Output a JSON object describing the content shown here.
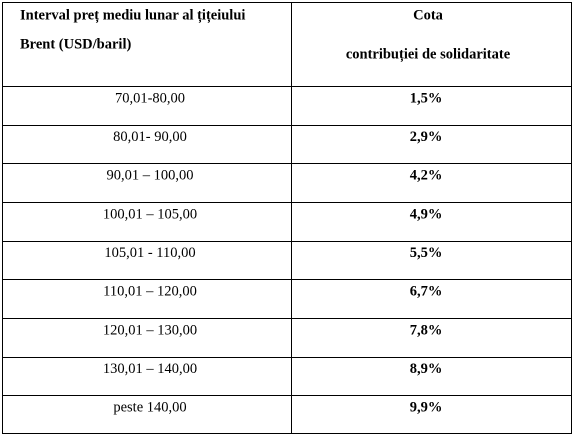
{
  "table": {
    "header": [
      [
        "Interval preț mediu lunar al țițeiului",
        "Brent (USD/baril)"
      ],
      [
        "Cota",
        "contribuției de solidaritate"
      ]
    ],
    "rows": [
      [
        "70,01-80,00",
        "1,5%"
      ],
      [
        "80,01- 90,00",
        "2,9%"
      ],
      [
        "90,01 – 100,00",
        "4,2%"
      ],
      [
        "100,01 – 105,00",
        "4,9%"
      ],
      [
        "105,01 - 110,00",
        "5,5%"
      ],
      [
        "110,01 – 120,00",
        "6,7%"
      ],
      [
        "120,01 – 130,00",
        "7,8%"
      ],
      [
        "130,01 – 140,00",
        "8,9%"
      ],
      [
        "peste 140,00",
        "9,9%"
      ]
    ]
  }
}
